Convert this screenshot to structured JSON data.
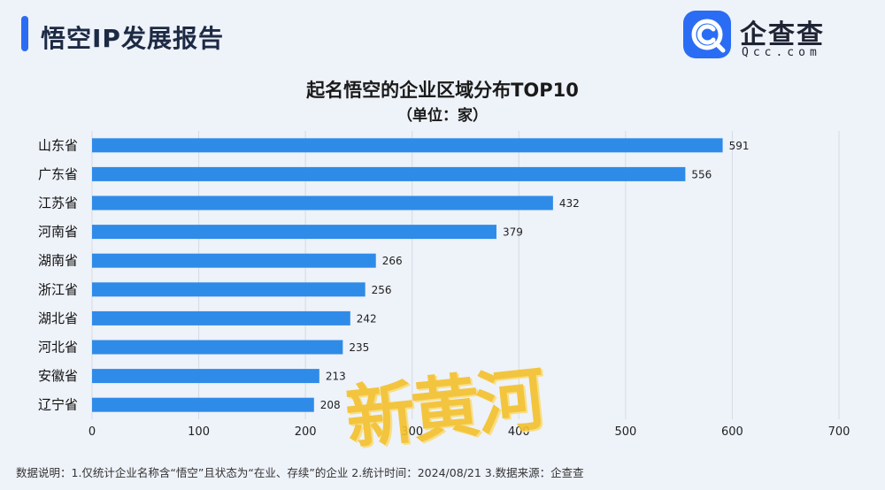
{
  "header": {
    "report_title": "悟空IP发展报告",
    "logo_cn": "企查查",
    "logo_en": "Qcc.com"
  },
  "colors": {
    "accent": "#2a6df4",
    "bar": "#2f8be8",
    "background": "#eef2f9",
    "watermark": "#f4c02a"
  },
  "chart_data": {
    "type": "bar",
    "orientation": "horizontal",
    "title": "起名悟空的企业区域分布TOP10",
    "subtitle": "（单位：家）",
    "categories": [
      "山东省",
      "广东省",
      "江苏省",
      "河南省",
      "湖南省",
      "浙江省",
      "湖北省",
      "河北省",
      "安徽省",
      "辽宁省"
    ],
    "values": [
      591,
      556,
      432,
      379,
      266,
      256,
      242,
      235,
      213,
      208
    ],
    "xlim": [
      0,
      700
    ],
    "xticks": [
      0,
      100,
      200,
      300,
      400,
      500,
      600,
      700
    ],
    "grid": true,
    "legend": "none"
  },
  "footnote": "数据说明：1.仅统计企业名称含“悟空”且状态为“在业、存续”的企业   2.统计时间：2024/08/21   3.数据来源：企查查",
  "watermark_text": "新黄河",
  "icons": {
    "logo": "qcc-logo-icon"
  }
}
